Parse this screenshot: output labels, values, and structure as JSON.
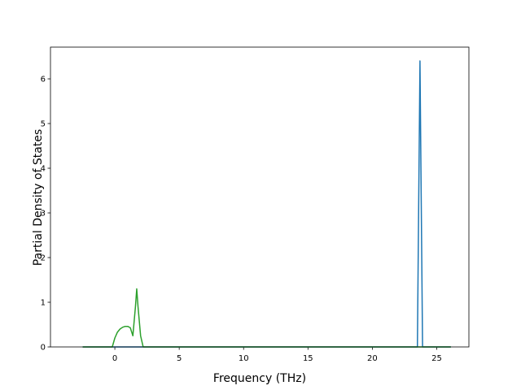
{
  "chart_data": {
    "type": "line",
    "x_label": "Frequency (THz)",
    "y_label": "Partial Density of States",
    "x": [
      -2.5,
      -0.2,
      0,
      0.2,
      0.4,
      0.6,
      0.8,
      1.0,
      1.2,
      1.4,
      1.6,
      1.7,
      1.8,
      2.0,
      2.2,
      5,
      10,
      15,
      20,
      23.4,
      23.5,
      23.7,
      23.9,
      24,
      26.1
    ],
    "series": [
      {
        "name": "blue",
        "color": "#1f77b4",
        "values": [
          0,
          0,
          0,
          0,
          0,
          0,
          0,
          0,
          0,
          0,
          0,
          0,
          0,
          0,
          0,
          0,
          0,
          0,
          0,
          0,
          0,
          6.4,
          0,
          0,
          0
        ]
      },
      {
        "name": "green",
        "color": "#2ca02c",
        "values": [
          0,
          0,
          0.2,
          0.33,
          0.4,
          0.44,
          0.46,
          0.46,
          0.43,
          0.25,
          0.9,
          1.3,
          0.9,
          0.25,
          0,
          0,
          0,
          0,
          0,
          0,
          0,
          0,
          0,
          0,
          0
        ]
      }
    ],
    "xlim": [
      -5,
      27.5
    ],
    "ylim": [
      0,
      6.71
    ],
    "xticks": [
      0,
      5,
      10,
      15,
      20,
      25
    ],
    "yticks": [
      0,
      1,
      2,
      3,
      4,
      5,
      6
    ]
  }
}
